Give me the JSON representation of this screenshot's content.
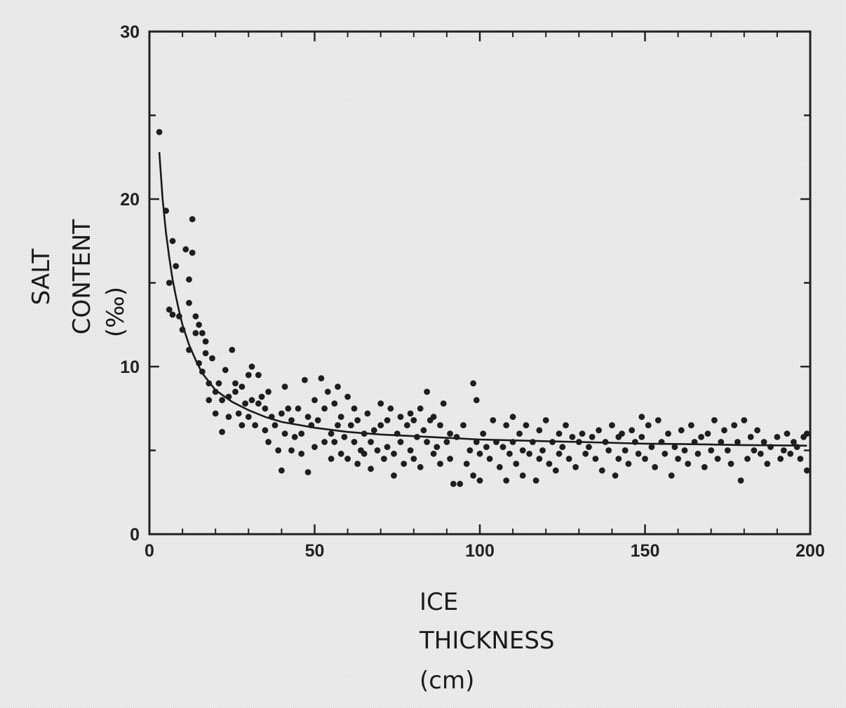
{
  "chart_data": {
    "type": "scatter",
    "title": "",
    "xlabel_lines": [
      "ICE",
      "THICKNESS",
      "(cm)"
    ],
    "ylabel_lines": [
      "SALT",
      "CONTENT",
      "(‰)"
    ],
    "xlim": [
      0,
      200
    ],
    "ylim": [
      0,
      30
    ],
    "x_ticks": [
      0,
      50,
      100,
      150,
      200
    ],
    "y_ticks": [
      0,
      10,
      20,
      30
    ],
    "x_tick_labels": [
      "0",
      "50",
      "100",
      "150",
      "200"
    ],
    "y_tick_labels": [
      "0",
      "10",
      "20",
      "30"
    ],
    "grid": false,
    "legend": "none",
    "series": [
      {
        "kind": "points",
        "points": [
          [
            3,
            24.0
          ],
          [
            5,
            19.3
          ],
          [
            6,
            15.0
          ],
          [
            6,
            13.4
          ],
          [
            7,
            13.1
          ],
          [
            8,
            16.0
          ],
          [
            7,
            17.5
          ],
          [
            9,
            13.0
          ],
          [
            10,
            12.2
          ],
          [
            11,
            17.0
          ],
          [
            12,
            15.2
          ],
          [
            12,
            13.8
          ],
          [
            12,
            11.0
          ],
          [
            13,
            18.8
          ],
          [
            13,
            16.8
          ],
          [
            14,
            13.0
          ],
          [
            14,
            12.0
          ],
          [
            15,
            12.5
          ],
          [
            15,
            10.2
          ],
          [
            16,
            12.0
          ],
          [
            16,
            9.7
          ],
          [
            17,
            11.5
          ],
          [
            17,
            10.8
          ],
          [
            18,
            9.0
          ],
          [
            18,
            8.0
          ],
          [
            19,
            10.5
          ],
          [
            20,
            8.5
          ],
          [
            20,
            7.2
          ],
          [
            21,
            9.0
          ],
          [
            22,
            8.0
          ],
          [
            22,
            6.1
          ],
          [
            23,
            9.8
          ],
          [
            24,
            8.2
          ],
          [
            24,
            7.0
          ],
          [
            25,
            11.0
          ],
          [
            26,
            9.0
          ],
          [
            26,
            8.5
          ],
          [
            27,
            7.2
          ],
          [
            28,
            8.8
          ],
          [
            28,
            6.5
          ],
          [
            29,
            7.8
          ],
          [
            30,
            9.5
          ],
          [
            30,
            7.0
          ],
          [
            31,
            10.0
          ],
          [
            31,
            8.0
          ],
          [
            32,
            6.5
          ],
          [
            33,
            9.5
          ],
          [
            33,
            7.8
          ],
          [
            34,
            8.2
          ],
          [
            35,
            7.5
          ],
          [
            35,
            6.2
          ],
          [
            36,
            8.5
          ],
          [
            36,
            5.5
          ],
          [
            37,
            7.0
          ],
          [
            38,
            6.5
          ],
          [
            39,
            5.0
          ],
          [
            40,
            7.2
          ],
          [
            40,
            3.8
          ],
          [
            41,
            6.0
          ],
          [
            41,
            8.8
          ],
          [
            42,
            7.5
          ],
          [
            43,
            6.8
          ],
          [
            43,
            5.0
          ],
          [
            44,
            5.8
          ],
          [
            45,
            7.5
          ],
          [
            46,
            6.0
          ],
          [
            46,
            4.8
          ],
          [
            47,
            9.2
          ],
          [
            48,
            7.0
          ],
          [
            48,
            3.7
          ],
          [
            49,
            6.5
          ],
          [
            50,
            8.0
          ],
          [
            50,
            5.2
          ],
          [
            51,
            6.8
          ],
          [
            52,
            9.3
          ],
          [
            53,
            7.5
          ],
          [
            53,
            5.5
          ],
          [
            54,
            8.5
          ],
          [
            55,
            6.0
          ],
          [
            55,
            4.5
          ],
          [
            56,
            7.8
          ],
          [
            56,
            5.5
          ],
          [
            57,
            8.8
          ],
          [
            57,
            6.5
          ],
          [
            58,
            4.8
          ],
          [
            58,
            7.0
          ],
          [
            59,
            5.8
          ],
          [
            60,
            8.2
          ],
          [
            60,
            4.5
          ],
          [
            61,
            6.5
          ],
          [
            62,
            5.5
          ],
          [
            62,
            7.5
          ],
          [
            63,
            4.2
          ],
          [
            63,
            6.8
          ],
          [
            64,
            5.0
          ],
          [
            65,
            6.0
          ],
          [
            65,
            4.8
          ],
          [
            66,
            7.2
          ],
          [
            67,
            5.5
          ],
          [
            67,
            3.9
          ],
          [
            68,
            6.2
          ],
          [
            69,
            5.0
          ],
          [
            70,
            7.8
          ],
          [
            70,
            6.5
          ],
          [
            71,
            4.5
          ],
          [
            72,
            6.8
          ],
          [
            72,
            5.2
          ],
          [
            73,
            7.5
          ],
          [
            74,
            4.8
          ],
          [
            74,
            3.5
          ],
          [
            75,
            6.0
          ],
          [
            76,
            5.5
          ],
          [
            76,
            7.0
          ],
          [
            77,
            4.2
          ],
          [
            78,
            6.5
          ],
          [
            79,
            5.0
          ],
          [
            79,
            7.2
          ],
          [
            80,
            4.5
          ],
          [
            80,
            6.8
          ],
          [
            81,
            5.8
          ],
          [
            82,
            7.5
          ],
          [
            82,
            4.0
          ],
          [
            83,
            6.2
          ],
          [
            84,
            8.5
          ],
          [
            84,
            5.5
          ],
          [
            85,
            6.8
          ],
          [
            86,
            4.8
          ],
          [
            86,
            7.0
          ],
          [
            87,
            5.2
          ],
          [
            88,
            6.5
          ],
          [
            88,
            4.2
          ],
          [
            89,
            7.8
          ],
          [
            90,
            5.5
          ],
          [
            91,
            6.0
          ],
          [
            91,
            4.5
          ],
          [
            92,
            3.0
          ],
          [
            93,
            5.8
          ],
          [
            94,
            3.0
          ],
          [
            95,
            6.5
          ],
          [
            96,
            4.2
          ],
          [
            97,
            5.0
          ],
          [
            98,
            3.5
          ],
          [
            98,
            9.0
          ],
          [
            99,
            8.0
          ],
          [
            99,
            5.5
          ],
          [
            100,
            4.8
          ],
          [
            100,
            3.2
          ],
          [
            101,
            6.0
          ],
          [
            102,
            5.2
          ],
          [
            103,
            4.5
          ],
          [
            104,
            6.8
          ],
          [
            105,
            5.5
          ],
          [
            106,
            4.0
          ],
          [
            107,
            5.2
          ],
          [
            108,
            6.5
          ],
          [
            108,
            3.2
          ],
          [
            109,
            4.8
          ],
          [
            110,
            7.0
          ],
          [
            110,
            5.5
          ],
          [
            111,
            4.2
          ],
          [
            112,
            6.0
          ],
          [
            113,
            5.0
          ],
          [
            113,
            3.5
          ],
          [
            114,
            6.5
          ],
          [
            115,
            4.8
          ],
          [
            116,
            5.5
          ],
          [
            117,
            3.2
          ],
          [
            118,
            6.2
          ],
          [
            118,
            4.5
          ],
          [
            119,
            5.0
          ],
          [
            120,
            6.8
          ],
          [
            121,
            4.2
          ],
          [
            122,
            5.5
          ],
          [
            123,
            3.8
          ],
          [
            124,
            6.0
          ],
          [
            124,
            4.8
          ],
          [
            125,
            5.2
          ],
          [
            126,
            6.5
          ],
          [
            127,
            4.5
          ],
          [
            128,
            5.8
          ],
          [
            129,
            4.0
          ],
          [
            130,
            5.5
          ],
          [
            131,
            6.0
          ],
          [
            132,
            4.8
          ],
          [
            133,
            5.2
          ],
          [
            134,
            5.8
          ],
          [
            135,
            4.5
          ],
          [
            136,
            6.2
          ],
          [
            137,
            3.8
          ],
          [
            138,
            5.5
          ],
          [
            139,
            5.0
          ],
          [
            140,
            6.5
          ],
          [
            141,
            3.5
          ],
          [
            142,
            5.8
          ],
          [
            142,
            4.5
          ],
          [
            143,
            6.0
          ],
          [
            144,
            5.0
          ],
          [
            145,
            4.2
          ],
          [
            146,
            6.2
          ],
          [
            147,
            5.5
          ],
          [
            148,
            4.8
          ],
          [
            149,
            7.0
          ],
          [
            149,
            5.8
          ],
          [
            150,
            4.5
          ],
          [
            151,
            6.5
          ],
          [
            152,
            5.2
          ],
          [
            153,
            4.0
          ],
          [
            154,
            6.8
          ],
          [
            155,
            5.5
          ],
          [
            156,
            4.8
          ],
          [
            157,
            6.0
          ],
          [
            158,
            3.5
          ],
          [
            159,
            5.2
          ],
          [
            160,
            4.5
          ],
          [
            161,
            6.2
          ],
          [
            162,
            5.0
          ],
          [
            163,
            4.2
          ],
          [
            164,
            6.5
          ],
          [
            165,
            5.5
          ],
          [
            166,
            4.8
          ],
          [
            167,
            5.8
          ],
          [
            168,
            4.0
          ],
          [
            169,
            6.0
          ],
          [
            170,
            5.0
          ],
          [
            171,
            6.8
          ],
          [
            172,
            4.5
          ],
          [
            173,
            5.5
          ],
          [
            174,
            6.2
          ],
          [
            175,
            5.0
          ],
          [
            176,
            4.2
          ],
          [
            177,
            6.5
          ],
          [
            178,
            5.5
          ],
          [
            179,
            3.2
          ],
          [
            180,
            6.8
          ],
          [
            181,
            4.5
          ],
          [
            182,
            5.8
          ],
          [
            183,
            5.0
          ],
          [
            184,
            6.2
          ],
          [
            185,
            4.8
          ],
          [
            186,
            5.5
          ],
          [
            187,
            4.2
          ],
          [
            188,
            5.2
          ],
          [
            190,
            5.8
          ],
          [
            191,
            4.5
          ],
          [
            192,
            5.0
          ],
          [
            193,
            6.0
          ],
          [
            194,
            4.8
          ],
          [
            195,
            5.5
          ],
          [
            196,
            5.2
          ],
          [
            197,
            4.5
          ],
          [
            198,
            5.8
          ],
          [
            199,
            6.0
          ],
          [
            199,
            3.8
          ]
        ]
      },
      {
        "kind": "fitted-curve",
        "points": [
          [
            3,
            22.8
          ],
          [
            4,
            20.0
          ],
          [
            5,
            18.0
          ],
          [
            6,
            16.5
          ],
          [
            7,
            15.2
          ],
          [
            8,
            14.2
          ],
          [
            9,
            13.3
          ],
          [
            10,
            12.5
          ],
          [
            12,
            11.3
          ],
          [
            14,
            10.4
          ],
          [
            16,
            9.6
          ],
          [
            18,
            9.1
          ],
          [
            20,
            8.6
          ],
          [
            25,
            7.9
          ],
          [
            30,
            7.4
          ],
          [
            35,
            7.0
          ],
          [
            40,
            6.7
          ],
          [
            50,
            6.35
          ],
          [
            60,
            6.1
          ],
          [
            70,
            5.95
          ],
          [
            80,
            5.85
          ],
          [
            90,
            5.75
          ],
          [
            100,
            5.65
          ],
          [
            110,
            5.6
          ],
          [
            120,
            5.55
          ],
          [
            130,
            5.5
          ],
          [
            140,
            5.45
          ],
          [
            150,
            5.4
          ],
          [
            160,
            5.38
          ],
          [
            170,
            5.35
          ],
          [
            180,
            5.32
          ],
          [
            190,
            5.3
          ],
          [
            199,
            5.28
          ]
        ]
      }
    ]
  }
}
